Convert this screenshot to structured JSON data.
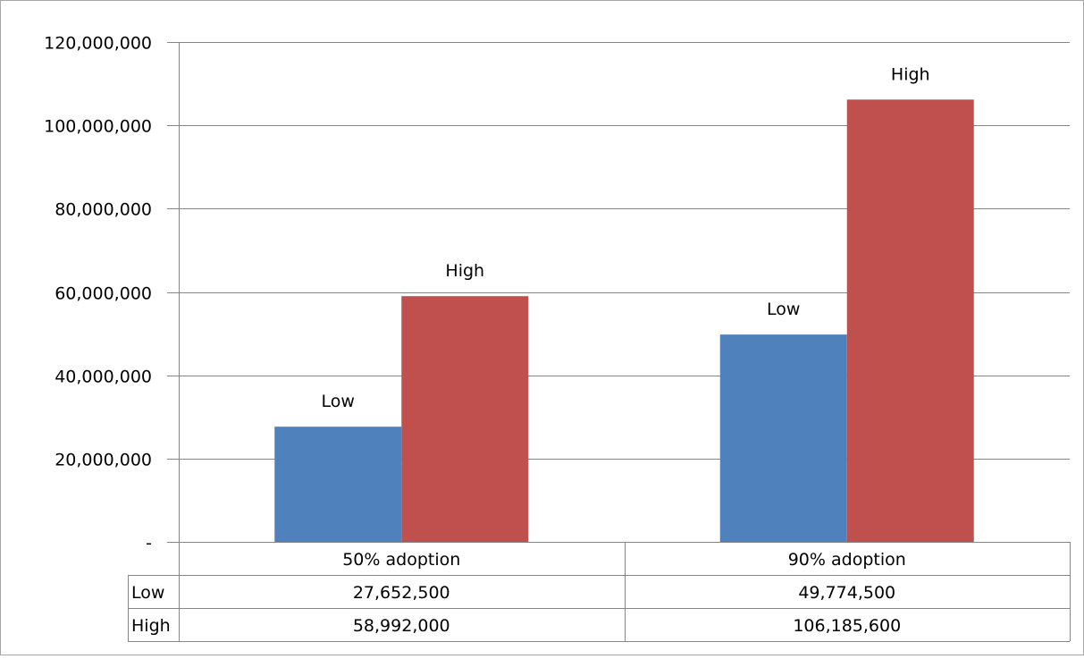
{
  "chart_data": {
    "type": "bar",
    "title": "",
    "xlabel": "",
    "ylabel": "",
    "categories": [
      "50% adoption",
      "90% adoption"
    ],
    "series": [
      {
        "name": "Low",
        "values": [
          27652500,
          49774500
        ],
        "color": "#4f81bd"
      },
      {
        "name": "High",
        "values": [
          58992000,
          106185600
        ],
        "color": "#c0504d"
      }
    ],
    "ylim": [
      0,
      120000000
    ],
    "yticks": [
      {
        "value": 0,
        "label": "-"
      },
      {
        "value": 20000000,
        "label": "20,000,000"
      },
      {
        "value": 40000000,
        "label": "40,000,000"
      },
      {
        "value": 60000000,
        "label": "60,000,000"
      },
      {
        "value": 80000000,
        "label": "80,000,000"
      },
      {
        "value": 100000000,
        "label": "100,000,000"
      },
      {
        "value": 120000000,
        "label": "120,000,000"
      }
    ],
    "grid": true,
    "data_labels": "series name above each bar",
    "data_table": {
      "rows": [
        {
          "label": "Low",
          "cells": [
            "27,652,500",
            "49,774,500"
          ]
        },
        {
          "label": "High",
          "cells": [
            "58,992,000",
            "106,185,600"
          ]
        }
      ]
    },
    "gridline_color": "#868686",
    "axis_color": "#868686"
  }
}
